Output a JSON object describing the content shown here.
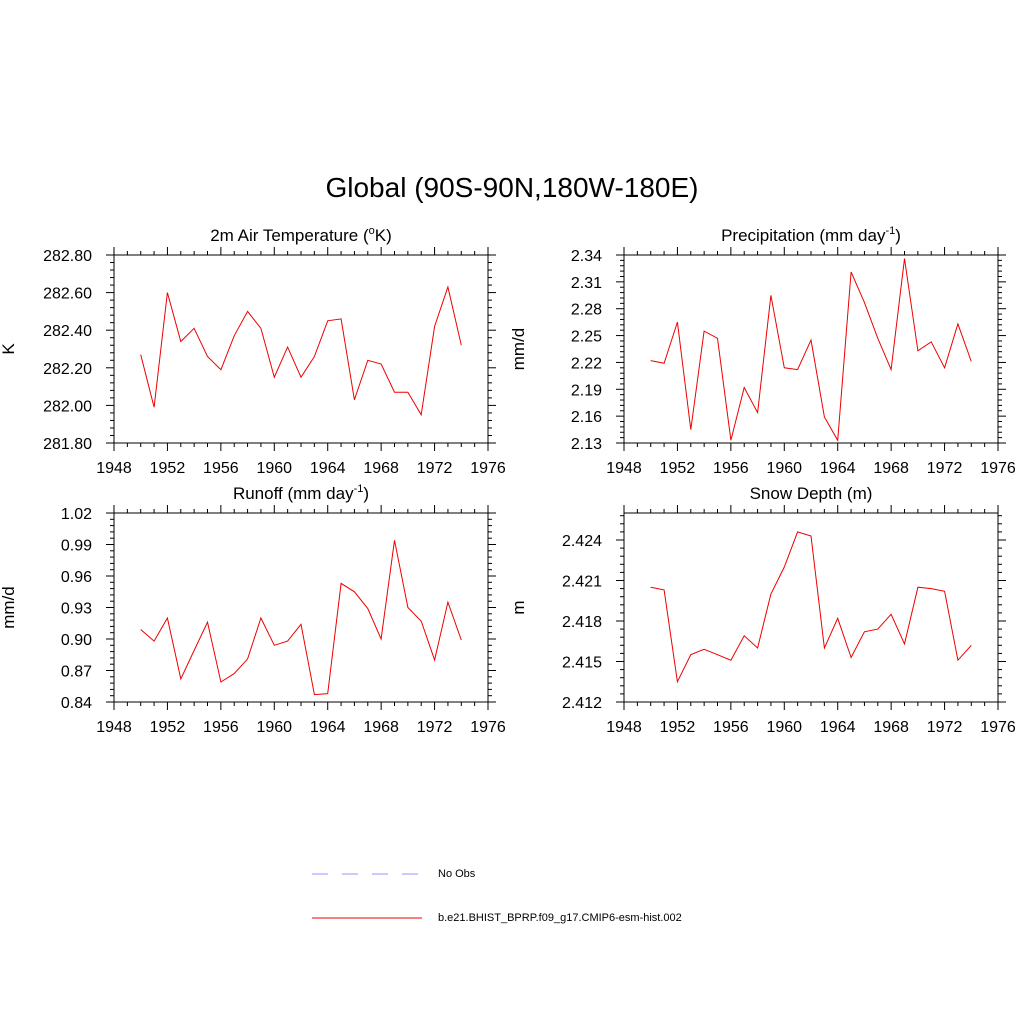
{
  "main_title": "Global (90S-90N,180W-180E)",
  "legend": [
    {
      "label": "No Obs",
      "color": "#aaaaff",
      "dash": true
    },
    {
      "label": "b.e21.BHIST_BPRP.f09_g17.CMIP6-esm-hist.002",
      "color": "#ee0000",
      "dash": false
    }
  ],
  "chart_data": [
    {
      "type": "line",
      "title": "2m Air Temperature (",
      "title_sup": "o",
      "title_tail": "K)",
      "ylabel": "K",
      "xlim": [
        1948,
        1976
      ],
      "xticks": [
        1948,
        1952,
        1956,
        1960,
        1964,
        1968,
        1972,
        1976
      ],
      "ylim": [
        281.8,
        282.8
      ],
      "yticks": [
        281.8,
        282.0,
        282.2,
        282.4,
        282.6,
        282.8
      ],
      "ytick_labels": [
        "281.80",
        "282.00",
        "282.20",
        "282.40",
        "282.60",
        "282.80"
      ],
      "color": "#ee0000",
      "x": [
        1950,
        1951,
        1952,
        1953,
        1954,
        1955,
        1956,
        1957,
        1958,
        1959,
        1960,
        1961,
        1962,
        1963,
        1964,
        1965,
        1966,
        1967,
        1968,
        1969,
        1970,
        1971,
        1972,
        1973,
        1974
      ],
      "y": [
        282.27,
        281.99,
        282.6,
        282.34,
        282.41,
        282.26,
        282.19,
        282.37,
        282.5,
        282.41,
        282.15,
        282.31,
        282.15,
        282.26,
        282.45,
        282.46,
        282.03,
        282.24,
        282.22,
        282.07,
        282.07,
        281.95,
        282.42,
        282.63,
        282.32
      ]
    },
    {
      "type": "line",
      "title": "Precipitation (mm day",
      "title_sup": "-1",
      "title_tail": ")",
      "ylabel": "mm/d",
      "xlim": [
        1948,
        1976
      ],
      "xticks": [
        1948,
        1952,
        1956,
        1960,
        1964,
        1968,
        1972,
        1976
      ],
      "ylim": [
        2.13,
        2.34
      ],
      "yticks": [
        2.13,
        2.16,
        2.19,
        2.22,
        2.25,
        2.28,
        2.31,
        2.34
      ],
      "ytick_labels": [
        "2.13",
        "2.16",
        "2.19",
        "2.22",
        "2.25",
        "2.28",
        "2.31",
        "2.34"
      ],
      "color": "#ee0000",
      "x": [
        1950,
        1951,
        1952,
        1953,
        1954,
        1955,
        1956,
        1957,
        1958,
        1959,
        1960,
        1961,
        1962,
        1963,
        1964,
        1965,
        1966,
        1967,
        1968,
        1969,
        1970,
        1971,
        1972,
        1973,
        1974
      ],
      "y": [
        2.222,
        2.219,
        2.265,
        2.145,
        2.255,
        2.247,
        2.133,
        2.192,
        2.164,
        2.295,
        2.214,
        2.212,
        2.245,
        2.159,
        2.133,
        2.321,
        2.287,
        2.247,
        2.212,
        2.336,
        2.233,
        2.243,
        2.214,
        2.263,
        2.221
      ]
    },
    {
      "type": "line",
      "title": "Runoff (mm day",
      "title_sup": "-1",
      "title_tail": ")",
      "ylabel": "mm/d",
      "xlim": [
        1948,
        1976
      ],
      "xticks": [
        1948,
        1952,
        1956,
        1960,
        1964,
        1968,
        1972,
        1976
      ],
      "ylim": [
        0.84,
        1.02
      ],
      "yticks": [
        0.84,
        0.87,
        0.9,
        0.93,
        0.96,
        0.99,
        1.02
      ],
      "ytick_labels": [
        "0.84",
        "0.87",
        "0.90",
        "0.93",
        "0.96",
        "0.99",
        "1.02"
      ],
      "color": "#ee0000",
      "x": [
        1950,
        1951,
        1952,
        1953,
        1954,
        1955,
        1956,
        1957,
        1958,
        1959,
        1960,
        1961,
        1962,
        1963,
        1964,
        1965,
        1966,
        1967,
        1968,
        1969,
        1970,
        1971,
        1972,
        1973,
        1974
      ],
      "y": [
        0.909,
        0.898,
        0.92,
        0.862,
        0.889,
        0.916,
        0.859,
        0.867,
        0.881,
        0.92,
        0.894,
        0.898,
        0.914,
        0.847,
        0.848,
        0.953,
        0.945,
        0.929,
        0.9,
        0.994,
        0.93,
        0.917,
        0.88,
        0.935,
        0.899
      ]
    },
    {
      "type": "line",
      "title": "Snow Depth (m)",
      "title_sup": "",
      "title_tail": "",
      "ylabel": "m",
      "xlim": [
        1948,
        1976
      ],
      "xticks": [
        1948,
        1952,
        1956,
        1960,
        1964,
        1968,
        1972,
        1976
      ],
      "ylim": [
        2.412,
        2.426
      ],
      "yticks": [
        2.412,
        2.415,
        2.418,
        2.421,
        2.424
      ],
      "ytick_labels": [
        "2.412",
        "2.415",
        "2.418",
        "2.421",
        "2.424"
      ],
      "color": "#ee0000",
      "x": [
        1950,
        1951,
        1952,
        1953,
        1954,
        1955,
        1956,
        1957,
        1958,
        1959,
        1960,
        1961,
        1962,
        1963,
        1964,
        1965,
        1966,
        1967,
        1968,
        1969,
        1970,
        1971,
        1972,
        1973,
        1974
      ],
      "y": [
        2.4205,
        2.4203,
        2.4135,
        2.4155,
        2.4159,
        2.4155,
        2.4151,
        2.4169,
        2.416,
        2.42,
        2.422,
        2.4246,
        2.4243,
        2.416,
        2.4182,
        2.4153,
        2.4172,
        2.4174,
        2.4185,
        2.4163,
        2.4205,
        2.4204,
        2.4202,
        2.4151,
        2.4162
      ]
    }
  ]
}
